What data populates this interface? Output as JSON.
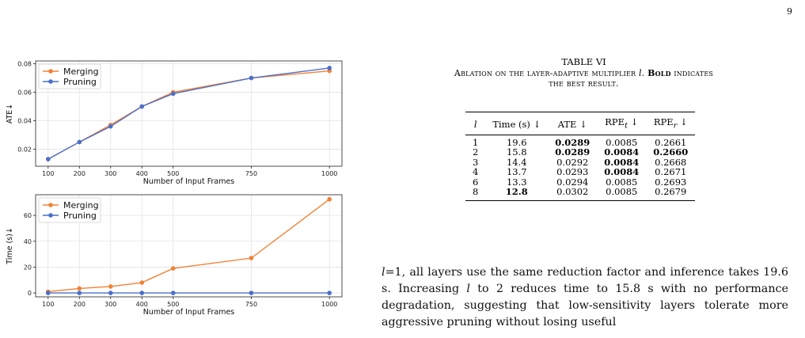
{
  "page_number": "9",
  "chart_data": [
    {
      "type": "line",
      "xlabel": "Number of Input Frames",
      "ylabel": "ATE↓",
      "x": [
        100,
        200,
        300,
        400,
        500,
        750,
        1000
      ],
      "xticks": [
        "100",
        "200",
        "300",
        "400",
        "500",
        "750",
        "1000"
      ],
      "yticks": [
        "0.02",
        "0.04",
        "0.06",
        "0.08"
      ],
      "ylim": [
        0.008,
        0.082
      ],
      "legend": "top-left",
      "grid": true,
      "series": [
        {
          "name": "Merging",
          "color": "#f28135",
          "values": [
            0.013,
            0.025,
            0.037,
            0.05,
            0.06,
            0.07,
            0.075
          ]
        },
        {
          "name": "Pruning",
          "color": "#4a6fc9",
          "values": [
            0.013,
            0.025,
            0.036,
            0.05,
            0.059,
            0.07,
            0.077
          ]
        }
      ]
    },
    {
      "type": "line",
      "xlabel": "Number of Input Frames",
      "ylabel": "Time (s)↓",
      "x": [
        100,
        200,
        300,
        400,
        500,
        750,
        1000
      ],
      "xticks": [
        "100",
        "200",
        "300",
        "400",
        "500",
        "750",
        "1000"
      ],
      "yticks": [
        "0",
        "20",
        "40",
        "60"
      ],
      "ylim": [
        -3,
        76
      ],
      "legend": "top-left",
      "grid": true,
      "series": [
        {
          "name": "Merging",
          "color": "#f28135",
          "values": [
            1,
            3.5,
            5,
            8,
            19,
            27,
            72.5
          ]
        },
        {
          "name": "Pruning",
          "color": "#4a6fc9",
          "values": [
            0,
            0,
            0,
            0,
            0,
            0,
            0
          ]
        }
      ]
    }
  ],
  "table": {
    "number": "TABLE VI",
    "caption_part1": "Ablation on the layer-adaptive multiplier ",
    "caption_var": "l",
    "caption_part2": ". ",
    "caption_bold": "Bold",
    "caption_part3": " indicates",
    "caption_line2": "the best result.",
    "headers": {
      "l": "l",
      "time": "Time (s) ↓",
      "ate": "ATE ↓",
      "rpe_t_base": "RPE",
      "rpe_t_sub": "t",
      "rpe_r_base": "RPE",
      "rpe_r_sub": "r",
      "arrow": "↓"
    },
    "rows": [
      {
        "l": "1",
        "time": "19.6",
        "ate": "0.0289",
        "rpe_t": "0.0085",
        "rpe_r": "0.2661"
      },
      {
        "l": "2",
        "time": "15.8",
        "ate": "0.0289",
        "rpe_t": "0.0084",
        "rpe_r": "0.2660"
      },
      {
        "l": "3",
        "time": "14.4",
        "ate": "0.0292",
        "rpe_t": "0.0084",
        "rpe_r": "0.2668"
      },
      {
        "l": "4",
        "time": "13.7",
        "ate": "0.0293",
        "rpe_t": "0.0084",
        "rpe_r": "0.2671"
      },
      {
        "l": "6",
        "time": "13.3",
        "ate": "0.0294",
        "rpe_t": "0.0085",
        "rpe_r": "0.2693"
      },
      {
        "l": "8",
        "time": "12.8",
        "ate": "0.0302",
        "rpe_t": "0.0085",
        "rpe_r": "0.2679"
      }
    ]
  },
  "paragraph": {
    "var1": "l",
    "t1": "=1, all layers use the same reduction factor and inference takes 19.6 s. Increasing ",
    "var2": "l",
    "t2": " to 2 reduces time to 15.8 s with no performance degradation, suggesting that low-sensitivity layers tolerate more aggressive pruning without losing useful"
  }
}
